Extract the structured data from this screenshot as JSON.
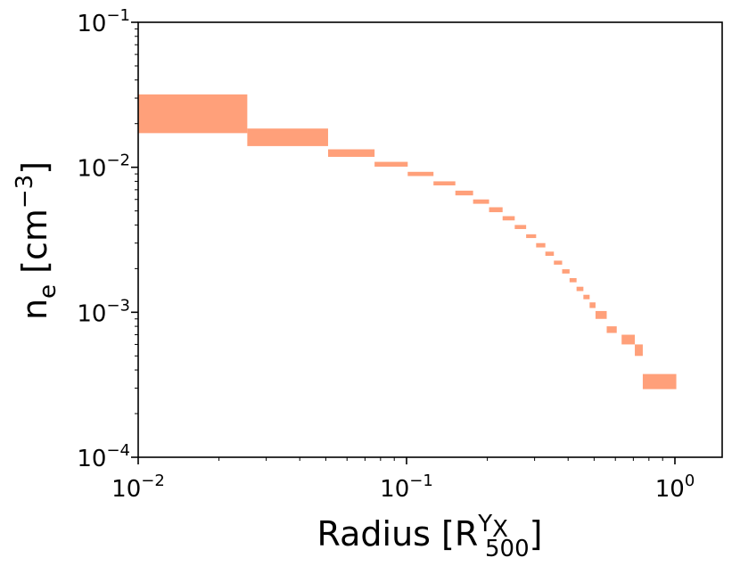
{
  "chart_data": {
    "type": "bar",
    "scale": {
      "x": "log",
      "y": "log"
    },
    "xlim": [
      0.01,
      1.5
    ],
    "ylim": [
      0.0001,
      0.1
    ],
    "grid": false,
    "color": "#FFA07A",
    "xlabel": {
      "main": "Radius [R",
      "sup": "Y",
      "sup_sub": "X",
      "sub": "500",
      "close": "]"
    },
    "ylabel": {
      "main": "n",
      "sub": "e",
      "unit": " [cm",
      "exp": "−3",
      "close": "]"
    },
    "x_ticks": [
      {
        "value": 0.01,
        "base": "10",
        "exp": "−2"
      },
      {
        "value": 0.1,
        "base": "10",
        "exp": "−1"
      },
      {
        "value": 1.0,
        "base": "10",
        "exp": "0"
      }
    ],
    "y_ticks": [
      {
        "value": 0.0001,
        "base": "10",
        "exp": "−4"
      },
      {
        "value": 0.001,
        "base": "10",
        "exp": "−3"
      },
      {
        "value": 0.01,
        "base": "10",
        "exp": "−2"
      },
      {
        "value": 0.1,
        "base": "10",
        "exp": "−1"
      }
    ],
    "bins": [
      {
        "x0": 0.01,
        "x1": 0.0255,
        "y_low": 0.0172,
        "y_high": 0.0318
      },
      {
        "x0": 0.0255,
        "x1": 0.051,
        "y_low": 0.014,
        "y_high": 0.0185
      },
      {
        "x0": 0.051,
        "x1": 0.076,
        "y_low": 0.0118,
        "y_high": 0.0133
      },
      {
        "x0": 0.076,
        "x1": 0.101,
        "y_low": 0.0101,
        "y_high": 0.0109
      },
      {
        "x0": 0.101,
        "x1": 0.126,
        "y_low": 0.0087,
        "y_high": 0.0093
      },
      {
        "x0": 0.126,
        "x1": 0.152,
        "y_low": 0.0075,
        "y_high": 0.008
      },
      {
        "x0": 0.152,
        "x1": 0.177,
        "y_low": 0.0064,
        "y_high": 0.0069
      },
      {
        "x0": 0.177,
        "x1": 0.203,
        "y_low": 0.0056,
        "y_high": 0.006
      },
      {
        "x0": 0.203,
        "x1": 0.228,
        "y_low": 0.0049,
        "y_high": 0.0053
      },
      {
        "x0": 0.228,
        "x1": 0.253,
        "y_low": 0.0043,
        "y_high": 0.0046
      },
      {
        "x0": 0.253,
        "x1": 0.279,
        "y_low": 0.00375,
        "y_high": 0.004
      },
      {
        "x0": 0.279,
        "x1": 0.304,
        "y_low": 0.00325,
        "y_high": 0.00345
      },
      {
        "x0": 0.304,
        "x1": 0.329,
        "y_low": 0.0028,
        "y_high": 0.003
      },
      {
        "x0": 0.329,
        "x1": 0.354,
        "y_low": 0.00245,
        "y_high": 0.00262
      },
      {
        "x0": 0.354,
        "x1": 0.38,
        "y_low": 0.00213,
        "y_high": 0.00227
      },
      {
        "x0": 0.38,
        "x1": 0.405,
        "y_low": 0.00185,
        "y_high": 0.00198
      },
      {
        "x0": 0.405,
        "x1": 0.43,
        "y_low": 0.00161,
        "y_high": 0.00172
      },
      {
        "x0": 0.43,
        "x1": 0.456,
        "y_low": 0.0014,
        "y_high": 0.0015
      },
      {
        "x0": 0.456,
        "x1": 0.481,
        "y_low": 0.00123,
        "y_high": 0.00132
      },
      {
        "x0": 0.481,
        "x1": 0.506,
        "y_low": 0.00107,
        "y_high": 0.00117
      },
      {
        "x0": 0.506,
        "x1": 0.557,
        "y_low": 0.0009,
        "y_high": 0.00102
      },
      {
        "x0": 0.557,
        "x1": 0.607,
        "y_low": 0.00072,
        "y_high": 0.0008
      },
      {
        "x0": 0.633,
        "x1": 0.709,
        "y_low": 0.0006,
        "y_high": 0.0007
      },
      {
        "x0": 0.709,
        "x1": 0.759,
        "y_low": 0.0005,
        "y_high": 0.0006
      },
      {
        "x0": 0.759,
        "x1": 1.012,
        "y_low": 0.000295,
        "y_high": 0.000375
      }
    ]
  }
}
